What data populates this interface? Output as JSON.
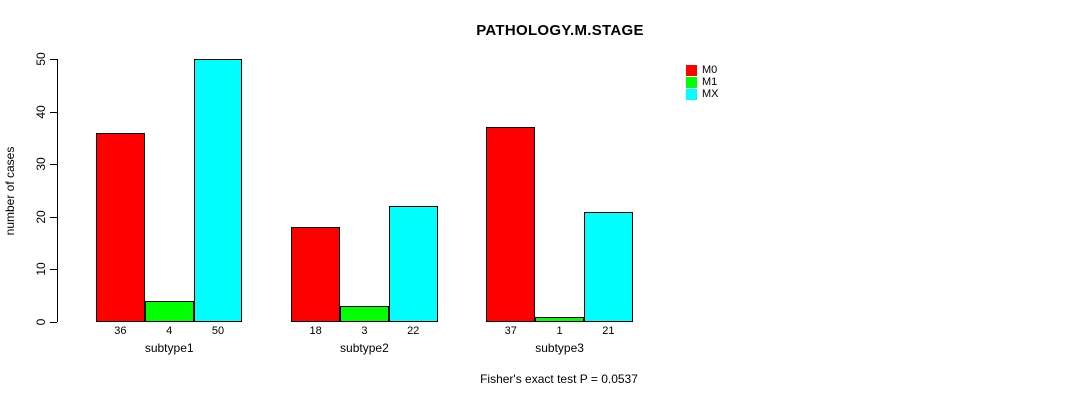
{
  "chart_data": {
    "type": "bar",
    "title": "PATHOLOGY.M.STAGE",
    "ylabel": "number of cases",
    "xlabel": "",
    "categories": [
      "subtype1",
      "subtype2",
      "subtype3"
    ],
    "series": [
      {
        "name": "M0",
        "color": "#ff0000",
        "values": [
          36,
          18,
          37
        ]
      },
      {
        "name": "M1",
        "color": "#00ff00",
        "values": [
          4,
          3,
          1
        ]
      },
      {
        "name": "MX",
        "color": "#00ffff",
        "values": [
          50,
          22,
          21
        ]
      }
    ],
    "ylim": [
      0,
      50
    ],
    "yticks": [
      0,
      10,
      20,
      30,
      40,
      50
    ],
    "bar_value_labels": true,
    "legend_position": "top-right",
    "grid": false,
    "caption": "Fisher's exact test P = 0.0537"
  }
}
